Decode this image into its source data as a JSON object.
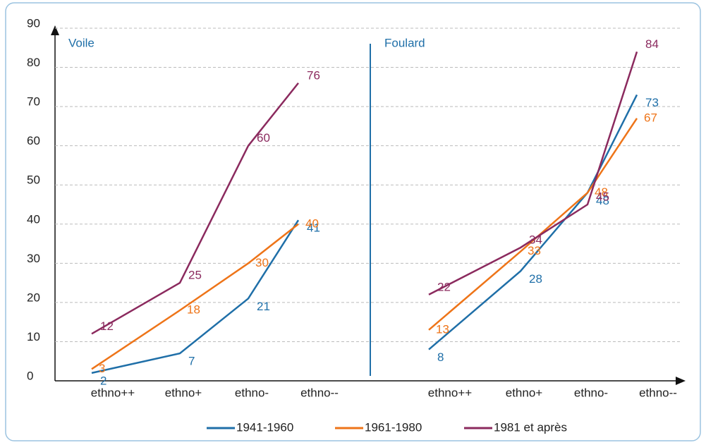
{
  "chart_data": {
    "type": "line",
    "series": [
      {
        "name": "1941-1960",
        "color": "#1f6fa8"
      },
      {
        "name": "1961-1980",
        "color": "#ee7418"
      },
      {
        "name": "1981 et après",
        "color": "#8b2a5e"
      }
    ],
    "ylim": [
      0,
      90
    ],
    "yticks": [
      0,
      10,
      20,
      30,
      40,
      50,
      60,
      70,
      80,
      90
    ],
    "grid": true,
    "panels": [
      {
        "title": "Voile",
        "categories": [
          "ethno++",
          "ethno+",
          "ethno-",
          "ethno--"
        ],
        "series": [
          {
            "values": [
              2,
              7,
              21,
              41
            ]
          },
          {
            "values": [
              3,
              18,
              30,
              40
            ]
          },
          {
            "values": [
              12,
              25,
              60,
              76
            ]
          }
        ]
      },
      {
        "title": "Foulard",
        "categories": [
          "ethno++",
          "ethno+",
          "ethno-",
          "ethno--"
        ],
        "series": [
          {
            "values": [
              8,
              28,
              48,
              73
            ]
          },
          {
            "values": [
              13,
              33,
              48,
              67
            ]
          },
          {
            "values": [
              22,
              34,
              45,
              84
            ]
          }
        ]
      }
    ]
  }
}
